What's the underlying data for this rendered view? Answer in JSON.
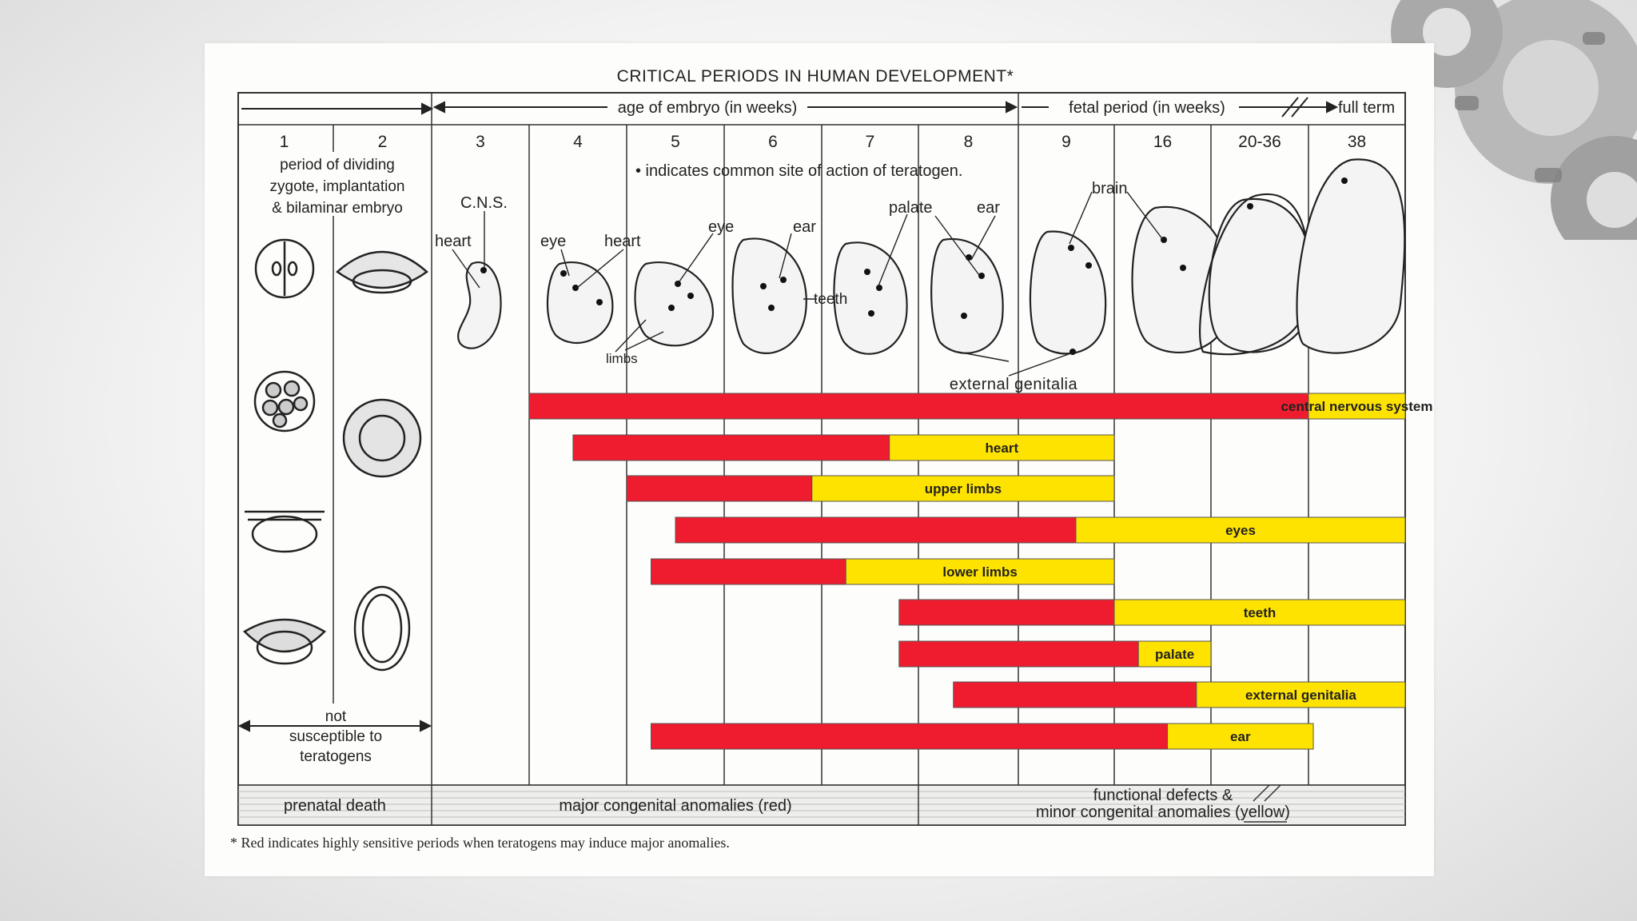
{
  "title": "CRITICAL PERIODS IN HUMAN DEVELOPMENT*",
  "header": {
    "embryo_period": "age of embryo (in weeks)",
    "fetal_period": "fetal period (in weeks)",
    "full_term": "full term"
  },
  "weeks": [
    "1",
    "2",
    "3",
    "4",
    "5",
    "6",
    "7",
    "8",
    "9",
    "16",
    "20-36",
    "38"
  ],
  "early_note": "period of dividing\nzygote, implantation\n& bilaminar embryo",
  "teratogen_note": "• indicates common site of action of teratogen.",
  "not_susceptible": "not\nsusceptible to\nteratogens",
  "illustration_labels": {
    "cns": "C.N.S.",
    "heart_3": "heart",
    "eye": "eye",
    "heart_4": "heart",
    "eye_5": "eye",
    "limbs": "limbs",
    "ear_6": "ear",
    "teeth": "teeth",
    "palate": "palate",
    "ear_8": "ear",
    "brain": "brain",
    "external_genitalia": "external genitalia"
  },
  "chart_data": {
    "type": "gantt",
    "x_unit": "week column",
    "columns": [
      "1",
      "2",
      "3",
      "4",
      "5",
      "6",
      "7",
      "8",
      "9",
      "16",
      "20-36",
      "38"
    ],
    "rows": [
      {
        "label": "central nervous system",
        "red": [
          3.0,
          11.0
        ],
        "yellow": [
          11.0,
          13.0
        ]
      },
      {
        "label": "heart",
        "red": [
          3.45,
          6.7
        ],
        "yellow": [
          6.7,
          9.0
        ]
      },
      {
        "label": "upper limbs",
        "red": [
          4.0,
          5.9
        ],
        "yellow": [
          5.9,
          9.0
        ]
      },
      {
        "label": "eyes",
        "red": [
          4.5,
          8.6
        ],
        "yellow": [
          8.6,
          13.0
        ]
      },
      {
        "label": "lower limbs",
        "red": [
          4.25,
          6.25
        ],
        "yellow": [
          6.25,
          9.0
        ]
      },
      {
        "label": "teeth",
        "red": [
          6.8,
          9.0
        ],
        "yellow": [
          9.0,
          13.0
        ]
      },
      {
        "label": "palate",
        "red": [
          6.8,
          9.25
        ],
        "yellow": [
          9.25,
          10.0
        ]
      },
      {
        "label": "external genitalia",
        "red": [
          7.35,
          9.85
        ],
        "yellow": [
          9.85,
          13.0
        ]
      },
      {
        "label": "ear",
        "red": [
          4.25,
          9.55
        ],
        "yellow": [
          9.55,
          11.05
        ]
      }
    ],
    "colors": {
      "red": "#ee1c2e",
      "yellow": "#ffe300"
    }
  },
  "footer_bands": {
    "prenatal_death": "prenatal death",
    "major": "major congenital anomalies (red)",
    "functional": "functional defects &\nminor congenital anomalies (yellow)"
  },
  "footnote": "* Red indicates highly sensitive periods when teratogens may induce major anomalies."
}
